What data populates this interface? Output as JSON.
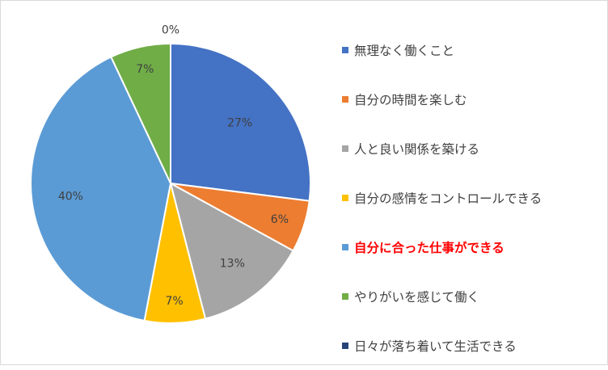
{
  "chart_data": {
    "type": "pie",
    "categories": [
      "無理なく働くこと",
      "自分の時間を楽しむ",
      "人と良い関係を築ける",
      "自分の感情をコントロールできる",
      "自分に合った仕事ができる",
      "やりがいを感じて働く",
      "日々が落ち着いて生活できる"
    ],
    "values": [
      27,
      6,
      13,
      7,
      40,
      7,
      0
    ],
    "labels": [
      "27%",
      "6%",
      "13%",
      "7%",
      "40%",
      "7%",
      "0%"
    ],
    "colors": [
      "#4472C4",
      "#ED7D31",
      "#A5A5A5",
      "#FFC000",
      "#5B9BD5",
      "#70AD47",
      "#264478"
    ],
    "highlight_category": "自分に合った仕事ができる",
    "highlight_color": "#FF0000",
    "legend_text_color": "#404040",
    "legend_position": "right",
    "start_angle": "top",
    "direction": "clockwise"
  }
}
